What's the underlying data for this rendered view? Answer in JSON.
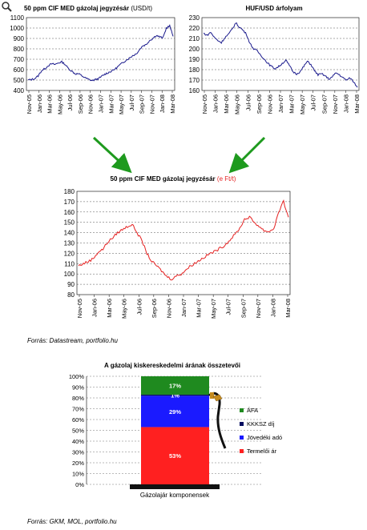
{
  "toolbar": {
    "zoom_icon": "magnifier-icon"
  },
  "chart_data": [
    {
      "type": "line",
      "title": "50 ppm CIF MED gázolaj jegyzésár",
      "title_unit": "(USD/t)",
      "ylim": [
        400,
        1100
      ],
      "yticks": [
        "1100",
        "1000",
        "900",
        "800",
        "700",
        "600",
        "500",
        "400"
      ],
      "xticks": [
        "Nov-05",
        "Jan-06",
        "Mar-06",
        "May-06",
        "Jul-06",
        "Sep-06",
        "Nov-06",
        "Jan-07",
        "Mar-07",
        "May-07",
        "Jul-07",
        "Sep-07",
        "Nov-07",
        "Jan-08",
        "Mar-08"
      ],
      "line_color": "#1a1a8c",
      "series": [
        {
          "values": [
            500,
            505,
            515,
            540,
            590,
            610,
            640,
            655,
            650,
            665,
            675,
            650,
            610,
            585,
            560,
            560,
            540,
            520,
            505,
            495,
            505,
            515,
            540,
            560,
            575,
            590,
            610,
            640,
            665,
            690,
            710,
            735,
            750,
            790,
            830,
            840,
            880,
            900,
            930,
            915,
            905,
            1000,
            1020,
            920
          ]
        }
      ]
    },
    {
      "type": "line",
      "title": "HUF/USD árfolyam",
      "ylim": [
        160,
        230
      ],
      "yticks": [
        "230",
        "220",
        "210",
        "200",
        "190",
        "180",
        "170",
        "160"
      ],
      "xticks": [
        "Nov-05",
        "Jan-06",
        "Mar-06",
        "May-06",
        "Jul-06",
        "Sep-06",
        "Nov-06",
        "Jan-07",
        "Mar-07",
        "May-07",
        "Jul-07",
        "Sep-07",
        "Nov-07",
        "Jan-08",
        "Mar-08"
      ],
      "line_color": "#1a1a8c",
      "series": [
        {
          "values": [
            215,
            213,
            216,
            211,
            208,
            206,
            211,
            214,
            219,
            225,
            221,
            218,
            214,
            205,
            200,
            198,
            194,
            190,
            186,
            183,
            181,
            183,
            186,
            189,
            184,
            178,
            176,
            178,
            183,
            188,
            185,
            179,
            175,
            176,
            174,
            171,
            173,
            177,
            175,
            172,
            170,
            172,
            168,
            163
          ]
        }
      ]
    },
    {
      "type": "line",
      "title": "50 ppm CIF MED gázolaj jegyzésár",
      "title_unit": "(e Ft/t)",
      "ylim": [
        80,
        180
      ],
      "yticks": [
        "180",
        "170",
        "160",
        "150",
        "140",
        "130",
        "120",
        "110",
        "100",
        "90",
        "80"
      ],
      "xticks": [
        "Nov-05",
        "Jan-06",
        "Mar-06",
        "May-06",
        "Jul-06",
        "Sep-06",
        "Nov-06",
        "Jan-07",
        "Mar-07",
        "May-07",
        "Jul-07",
        "Sep-07",
        "Nov-07",
        "Jan-08",
        "Mar-08"
      ],
      "line_color": "#e52222",
      "series": [
        {
          "values": [
            108,
            110,
            112,
            115,
            121,
            124,
            131,
            135,
            140,
            143,
            146,
            148,
            140,
            132,
            120,
            112,
            108,
            103,
            98,
            95,
            98,
            100,
            104,
            108,
            111,
            114,
            117,
            120,
            122,
            125,
            128,
            133,
            138,
            144,
            153,
            155,
            150,
            146,
            142,
            141,
            144,
            160,
            170,
            155
          ]
        }
      ]
    },
    {
      "type": "bar",
      "title": "A gázolaj kiskereskedelmi árának összetevői",
      "ylim": [
        0,
        100
      ],
      "yticks": [
        "100%",
        "90%",
        "80%",
        "70%",
        "60%",
        "50%",
        "40%",
        "30%",
        "20%",
        "10%",
        "0%"
      ],
      "categories": [
        "Gázolajár komponensek"
      ],
      "series": [
        {
          "name": "Termelői ár",
          "value": 53,
          "label": "53%",
          "color": "#ff2020"
        },
        {
          "name": "Jövedéki adó",
          "value": 29,
          "label": "29%",
          "color": "#1a1aff"
        },
        {
          "name": "KKKSZ díj",
          "value": 1,
          "label": "1%",
          "color": "#000a5e"
        },
        {
          "name": "ÁFA",
          "value": 17,
          "label": "17%",
          "color": "#1f8a1f"
        }
      ],
      "legend_order": [
        "ÁFA",
        "KKKSZ díj",
        "Jövedéki adó",
        "Termelői ár"
      ]
    }
  ],
  "sources": {
    "first": "Forrás: Datastream, portfolio.hu",
    "second": "Forrás: GKM, MOL, portfolio.hu"
  }
}
